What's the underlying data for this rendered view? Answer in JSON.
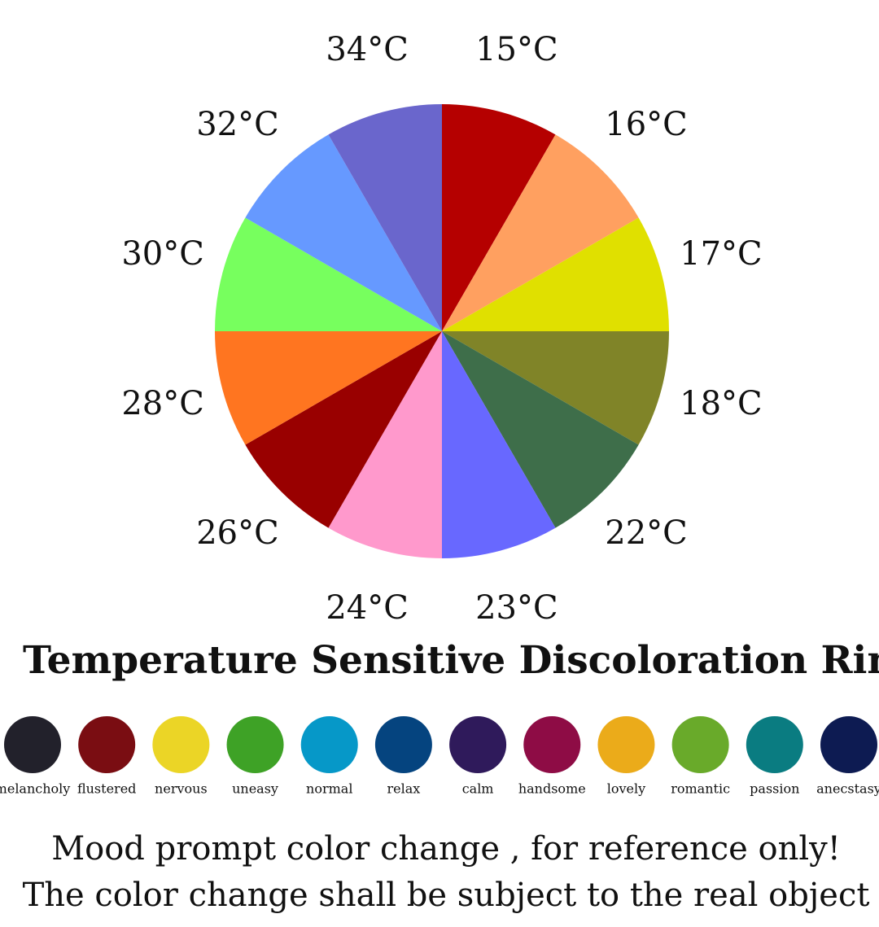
{
  "wheel": {
    "segments": [
      {
        "label": "15°C",
        "color": "#b50000"
      },
      {
        "label": "16°C",
        "color": "#ffa060"
      },
      {
        "label": "17°C",
        "color": "#e0e000"
      },
      {
        "label": "18°C",
        "color": "#808428"
      },
      {
        "label": "22°C",
        "color": "#3e6e4a"
      },
      {
        "label": "23°C",
        "color": "#6868ff"
      },
      {
        "label": "24°C",
        "color": "#ff99cc"
      },
      {
        "label": "26°C",
        "color": "#990000"
      },
      {
        "label": "28°C",
        "color": "#ff7520"
      },
      {
        "label": "30°C",
        "color": "#77ff5e"
      },
      {
        "label": "32°C",
        "color": "#6699ff"
      },
      {
        "label": "34°C",
        "color": "#6a66cc"
      }
    ]
  },
  "title": "Temperature Sensitive Discoloration Ring",
  "moods": [
    {
      "label": "melancholy",
      "color": "#22212b"
    },
    {
      "label": "flustered",
      "color": "#7a0d12"
    },
    {
      "label": "nervous",
      "color": "#ebd526"
    },
    {
      "label": "uneasy",
      "color": "#3ea226"
    },
    {
      "label": "normal",
      "color": "#0698c8"
    },
    {
      "label": "relax",
      "color": "#05447f"
    },
    {
      "label": "calm",
      "color": "#2f1a5b"
    },
    {
      "label": "handsome",
      "color": "#8e0c45"
    },
    {
      "label": "lovely",
      "color": "#ebab1a"
    },
    {
      "label": "romantic",
      "color": "#69aa2a"
    },
    {
      "label": "passion",
      "color": "#0a7c81"
    },
    {
      "label": "anecstasy",
      "color": "#0d1b52"
    }
  ],
  "notes": [
    "Mood prompt color change , for reference only!",
    "The color change shall be subject to the real object"
  ]
}
